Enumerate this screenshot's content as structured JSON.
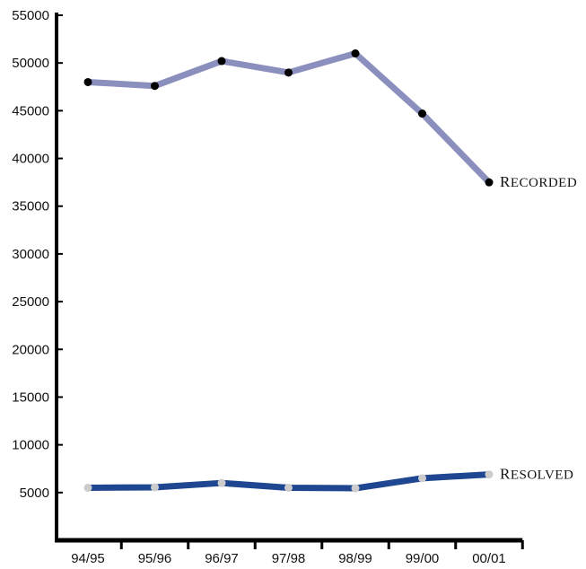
{
  "chart_data": {
    "type": "line",
    "title": "",
    "xlabel": "",
    "ylabel": "",
    "categories": [
      "94/95",
      "95/96",
      "96/97",
      "97/98",
      "98/99",
      "99/00",
      "00/01"
    ],
    "ylim": [
      0,
      55000
    ],
    "yticks": [
      5000,
      10000,
      15000,
      20000,
      25000,
      30000,
      35000,
      40000,
      45000,
      50000,
      55000
    ],
    "grid": false,
    "legend": "none",
    "series": [
      {
        "name": "Recorded",
        "values": [
          48000,
          47600,
          50200,
          49000,
          51000,
          44700,
          37500
        ],
        "line_color": "#8a8fbd",
        "marker_color": "#000000"
      },
      {
        "name": "Resolved",
        "values": [
          5500,
          5550,
          6000,
          5500,
          5450,
          6500,
          6900
        ],
        "line_color": "#1f4690",
        "marker_color": "#cccccc"
      }
    ]
  }
}
